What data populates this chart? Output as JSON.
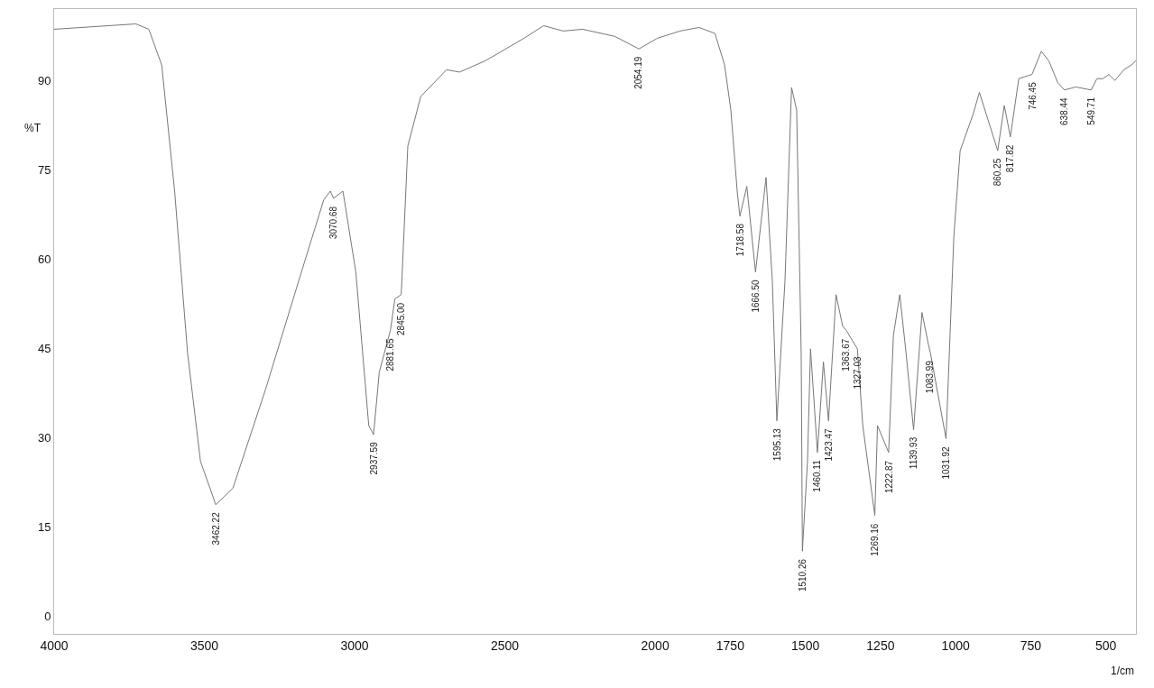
{
  "chart_data": {
    "type": "line",
    "xlabel": "1/cm",
    "ylabel": "%T",
    "x": [
      4000,
      3728,
      3685,
      3642,
      3599,
      3556,
      3513,
      3462,
      3405,
      3297,
      3168,
      3103,
      3081,
      3070,
      3039,
      2996,
      2953,
      2937,
      2918,
      2881,
      2866,
      2845,
      2823,
      2780,
      2694,
      2651,
      2565,
      2436,
      2371,
      2306,
      2241,
      2134,
      2054,
      1992,
      1917,
      1854,
      1801,
      1769,
      1748,
      1727,
      1718,
      1695,
      1666,
      1631,
      1610,
      1595,
      1568,
      1546,
      1529,
      1514,
      1510,
      1493,
      1483,
      1460,
      1440,
      1423,
      1398,
      1376,
      1364,
      1327,
      1309,
      1269,
      1260,
      1223,
      1207,
      1186,
      1165,
      1140,
      1112,
      1091,
      1084,
      1032,
      1006,
      985,
      942,
      921,
      860,
      838,
      818,
      790,
      746,
      715,
      690,
      660,
      638,
      600,
      560,
      549,
      530,
      510,
      490,
      470,
      440,
      415,
      400
    ],
    "series": [
      {
        "color": "#777777",
        "values": [
          98.6,
          99.5,
          98.6,
          92.6,
          71.4,
          44.2,
          26,
          18.7,
          21.5,
          38,
          59.3,
          69.9,
          71.4,
          70.2,
          71.4,
          57.8,
          32,
          30.5,
          41,
          48,
          53.3,
          54,
          79,
          87.3,
          91.8,
          91.4,
          93.3,
          97.1,
          99.2,
          98.3,
          98.6,
          97.4,
          95.3,
          97.1,
          98.3,
          98.9,
          97.9,
          92.6,
          85,
          71.4,
          67.2,
          72.2,
          57.8,
          73.7,
          56.3,
          32.8,
          56.3,
          88.8,
          85,
          44.2,
          10.9,
          26,
          44.9,
          27.5,
          42.7,
          32.8,
          54,
          48.7,
          48,
          44.9,
          32,
          16.9,
          32,
          27.5,
          47.2,
          54,
          44.2,
          31.3,
          51,
          45.7,
          44.2,
          29.8,
          63.8,
          78.2,
          84.3,
          88,
          78.2,
          85.8,
          80.5,
          90.3,
          91,
          94.9,
          93.3,
          89.6,
          88.4,
          88.9,
          88.5,
          88.4,
          90.3,
          90.3,
          91,
          90,
          91.8,
          92.6,
          93.3
        ]
      }
    ],
    "xlim": [
      4000,
      400
    ],
    "ylim": [
      -3,
      102
    ],
    "xticks": [
      4000,
      3500,
      3000,
      2500,
      2000,
      1750,
      1500,
      1250,
      1000,
      750,
      500
    ],
    "yticks": [
      0,
      15,
      30,
      45,
      60,
      75,
      90
    ],
    "grid": false,
    "line_style": "solid",
    "marker": "none",
    "annotations": [
      {
        "text": "3462.22",
        "x": 3462,
        "y": 18.7
      },
      {
        "text": "3070.68",
        "x": 3070,
        "y": 70.2
      },
      {
        "text": "2937.59",
        "x": 2937,
        "y": 30.5
      },
      {
        "text": "2881.65",
        "x": 2881,
        "y": 48
      },
      {
        "text": "2845.00",
        "x": 2845,
        "y": 54
      },
      {
        "text": "2054.19",
        "x": 2054,
        "y": 95.3
      },
      {
        "text": "1718.58",
        "x": 1718,
        "y": 67.2
      },
      {
        "text": "1666.50",
        "x": 1666,
        "y": 57.8
      },
      {
        "text": "1595.13",
        "x": 1595,
        "y": 32.8
      },
      {
        "text": "1510.26",
        "x": 1510,
        "y": 10.9
      },
      {
        "text": "1460.11",
        "x": 1460,
        "y": 27.5
      },
      {
        "text": "1423.47",
        "x": 1423,
        "y": 32.8
      },
      {
        "text": "1363.67",
        "x": 1364,
        "y": 48
      },
      {
        "text": "1327.03",
        "x": 1327,
        "y": 44.9
      },
      {
        "text": "1269.16",
        "x": 1269,
        "y": 16.9
      },
      {
        "text": "1222.87",
        "x": 1223,
        "y": 27.5
      },
      {
        "text": "1139.93",
        "x": 1140,
        "y": 31.3
      },
      {
        "text": "1083.99",
        "x": 1084,
        "y": 44.2
      },
      {
        "text": "1031.92",
        "x": 1032,
        "y": 29.8
      },
      {
        "text": "860.25",
        "x": 860,
        "y": 78.2
      },
      {
        "text": "817.82",
        "x": 818,
        "y": 80.5
      },
      {
        "text": "746.45",
        "x": 746,
        "y": 91
      },
      {
        "text": "638.44",
        "x": 638,
        "y": 88.4
      },
      {
        "text": "549.71",
        "x": 549,
        "y": 88.4
      }
    ]
  }
}
